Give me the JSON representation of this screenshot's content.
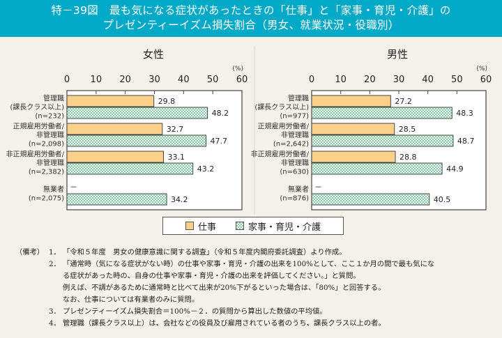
{
  "header": {
    "title_line1": "特－39図　最も気になる症状があったときの「仕事」と「家事・育児・介護」の",
    "title_line2": "プレゼンティーイズム損失割合（男女、就業状況・役職別）"
  },
  "colors": {
    "header_bg": "#00a9c6",
    "work": "#fad08a",
    "home_pattern": "#7ec99e",
    "background": "#f4f1e9"
  },
  "chart_data": [
    {
      "type": "bar",
      "orientation": "horizontal",
      "title": "女性",
      "unit_label": "(%)",
      "xlim": [
        0,
        60
      ],
      "ticks": [
        "0",
        "10",
        "20",
        "30",
        "40",
        "50",
        "60"
      ],
      "categories": [
        {
          "lines": [
            "管理職",
            "(課長クラス以上)",
            "(n=232)"
          ]
        },
        {
          "lines": [
            "正規雇用労働者/",
            "非管理職",
            "(n=2,098)"
          ]
        },
        {
          "lines": [
            "非正規雇用労働者/",
            "非管理職",
            "(n=2,382)"
          ]
        },
        {
          "lines": [
            "無業者",
            "(n=2,075)"
          ]
        }
      ],
      "series": [
        {
          "name": "仕事",
          "values": [
            29.8,
            32.7,
            33.1,
            null
          ],
          "labels": [
            "29.8",
            "32.7",
            "33.1",
            "－"
          ]
        },
        {
          "name": "家事・育児・介護",
          "values": [
            48.2,
            47.7,
            43.2,
            34.2
          ],
          "labels": [
            "48.2",
            "47.7",
            "43.2",
            "34.2"
          ]
        }
      ]
    },
    {
      "type": "bar",
      "orientation": "horizontal",
      "title": "男性",
      "unit_label": "(%)",
      "xlim": [
        0,
        60
      ],
      "ticks": [
        "0",
        "10",
        "20",
        "30",
        "40",
        "50",
        "60"
      ],
      "categories": [
        {
          "lines": [
            "管理職",
            "(課長クラス以上)",
            "(n=977)"
          ]
        },
        {
          "lines": [
            "正規雇用労働者/",
            "非管理職",
            "(n=2,642)"
          ]
        },
        {
          "lines": [
            "非正規雇用労働者/",
            "非管理職",
            "(n=630)"
          ]
        },
        {
          "lines": [
            "無業者",
            "(n=876)"
          ]
        }
      ],
      "series": [
        {
          "name": "仕事",
          "values": [
            27.2,
            28.5,
            28.8,
            null
          ],
          "labels": [
            "27.2",
            "28.5",
            "28.8",
            "－"
          ]
        },
        {
          "name": "家事・育児・介護",
          "values": [
            48.3,
            48.7,
            44.9,
            40.5
          ],
          "labels": [
            "48.3",
            "48.7",
            "44.9",
            "40.5"
          ]
        }
      ]
    }
  ],
  "legend": {
    "items": [
      {
        "label": "仕事"
      },
      {
        "label": "家事・育児・介護"
      }
    ]
  },
  "notes": {
    "heading": "（備考）",
    "items": [
      {
        "num": "1．",
        "lines": [
          "「令和５年度　男女の健康意識に関する調査」（令和５年度内閣府委託調査）より作成。"
        ]
      },
      {
        "num": "2．",
        "lines": [
          "「通常時（気になる症状がない時）の仕事や家事・育児・介護の出来を100%として、ここ１か月の間で最も気にな",
          "る症状があった時の、自身の仕事や家事・育児・介護の出来を評価してください。」と質問。",
          "例えば、不調があるために通常時と比べて出来が20%下がるといった場合は、「80%」と回答する。",
          "なお、仕事については有業者のみに質問。"
        ]
      },
      {
        "num": "3．",
        "lines": [
          "プレゼンティーイズム損失割合＝100%－２．の質問から算出した数値の平均値。"
        ]
      },
      {
        "num": "4．",
        "lines": [
          "管理職（課長クラス以上）は、会社などの役員及び雇用されている者のうち、課長クラス以上の者。"
        ]
      }
    ]
  }
}
